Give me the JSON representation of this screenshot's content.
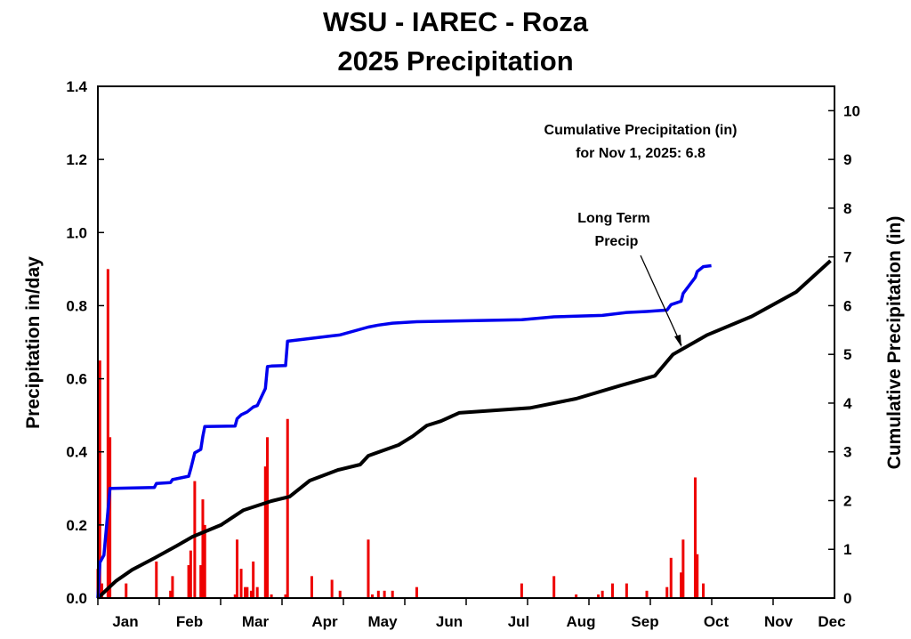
{
  "chart_data": {
    "type": "bar+line",
    "title": [
      "WSU - IAREC - Roza",
      "2025 Precipitation"
    ],
    "ylabel": "Precipitation in/day",
    "y2label": "Cumulative Precipitation (in)",
    "ylim": [
      0,
      1.4
    ],
    "y2lim": [
      0,
      10.5
    ],
    "yticks": [
      "0.0",
      "0.2",
      "0.4",
      "0.6",
      "0.8",
      "1.0",
      "1.2",
      "1.4"
    ],
    "y2ticks": [
      "0",
      "1",
      "2",
      "3",
      "4",
      "5",
      "6",
      "7",
      "8",
      "9",
      "10"
    ],
    "xlim": [
      "2025-01-01",
      "2025-12-31"
    ],
    "xticklabels": [
      "Jan",
      "Feb",
      "Mar",
      "Apr",
      "May",
      "Jun",
      "Jul",
      "Aug",
      "Sep",
      "Oct",
      "Nov",
      "Dec"
    ],
    "grid": false,
    "annotations": {
      "cumulative": [
        "Cumulative Precipitation (in)",
        "for Nov 1, 2025: 6.8"
      ],
      "long_term": [
        "Long Term",
        "Precip"
      ]
    },
    "colors": {
      "daily": "#ee0000",
      "cumulative": "#0000ee",
      "long_term": "#000000"
    },
    "daily_precip": [
      [
        "2025-01-01",
        0.08
      ],
      [
        "2025-01-02",
        0.65
      ],
      [
        "2025-01-03",
        0.04
      ],
      [
        "2025-01-06",
        0.9
      ],
      [
        "2025-01-07",
        0.44
      ],
      [
        "2025-01-15",
        0.04
      ],
      [
        "2025-01-30",
        0.1
      ],
      [
        "2025-02-06",
        0.02
      ],
      [
        "2025-02-07",
        0.06
      ],
      [
        "2025-02-15",
        0.09
      ],
      [
        "2025-02-16",
        0.13
      ],
      [
        "2025-02-18",
        0.32
      ],
      [
        "2025-02-21",
        0.09
      ],
      [
        "2025-02-22",
        0.27
      ],
      [
        "2025-02-23",
        0.2
      ],
      [
        "2025-03-10",
        0.01
      ],
      [
        "2025-03-11",
        0.16
      ],
      [
        "2025-03-13",
        0.08
      ],
      [
        "2025-03-15",
        0.03
      ],
      [
        "2025-03-16",
        0.03
      ],
      [
        "2025-03-18",
        0.02
      ],
      [
        "2025-03-19",
        0.1
      ],
      [
        "2025-03-21",
        0.03
      ],
      [
        "2025-03-25",
        0.36
      ],
      [
        "2025-03-26",
        0.44
      ],
      [
        "2025-03-28",
        0.01
      ],
      [
        "2025-04-04",
        0.01
      ],
      [
        "2025-04-05",
        0.49
      ],
      [
        "2025-04-17",
        0.06
      ],
      [
        "2025-04-27",
        0.05
      ],
      [
        "2025-05-01",
        0.02
      ],
      [
        "2025-05-15",
        0.16
      ],
      [
        "2025-05-17",
        0.01
      ],
      [
        "2025-05-20",
        0.02
      ],
      [
        "2025-05-23",
        0.02
      ],
      [
        "2025-05-27",
        0.02
      ],
      [
        "2025-06-08",
        0.03
      ],
      [
        "2025-07-30",
        0.04
      ],
      [
        "2025-08-15",
        0.06
      ],
      [
        "2025-08-26",
        0.01
      ],
      [
        "2025-09-06",
        0.01
      ],
      [
        "2025-09-08",
        0.02
      ],
      [
        "2025-09-13",
        0.04
      ],
      [
        "2025-09-20",
        0.04
      ],
      [
        "2025-09-30",
        0.02
      ],
      [
        "2025-10-10",
        0.03
      ],
      [
        "2025-10-12",
        0.11
      ],
      [
        "2025-10-17",
        0.07
      ],
      [
        "2025-10-18",
        0.16
      ],
      [
        "2025-10-24",
        0.33
      ],
      [
        "2025-10-25",
        0.12
      ],
      [
        "2025-10-28",
        0.04
      ]
    ],
    "cumulative_2025": [
      [
        "2025-01-01",
        0
      ],
      [
        "2025-01-02",
        0.73
      ],
      [
        "2025-01-04",
        0.88
      ],
      [
        "2025-01-06",
        1.78
      ],
      [
        "2025-01-07",
        2.25
      ],
      [
        "2025-01-29",
        2.27
      ],
      [
        "2025-01-30",
        2.35
      ],
      [
        "2025-02-06",
        2.37
      ],
      [
        "2025-02-07",
        2.43
      ],
      [
        "2025-02-15",
        2.5
      ],
      [
        "2025-02-16",
        2.65
      ],
      [
        "2025-02-18",
        2.98
      ],
      [
        "2025-02-21",
        3.05
      ],
      [
        "2025-02-22",
        3.32
      ],
      [
        "2025-02-23",
        3.52
      ],
      [
        "2025-03-10",
        3.53
      ],
      [
        "2025-03-11",
        3.68
      ],
      [
        "2025-03-13",
        3.76
      ],
      [
        "2025-03-16",
        3.82
      ],
      [
        "2025-03-19",
        3.92
      ],
      [
        "2025-03-21",
        3.95
      ],
      [
        "2025-03-25",
        4.3
      ],
      [
        "2025-03-26",
        4.75
      ],
      [
        "2025-03-28",
        4.76
      ],
      [
        "2025-04-04",
        4.77
      ],
      [
        "2025-04-05",
        5.27
      ],
      [
        "2025-04-17",
        5.33
      ],
      [
        "2025-04-27",
        5.38
      ],
      [
        "2025-05-01",
        5.4
      ],
      [
        "2025-05-15",
        5.56
      ],
      [
        "2025-05-20",
        5.6
      ],
      [
        "2025-05-27",
        5.64
      ],
      [
        "2025-06-08",
        5.67
      ],
      [
        "2025-07-30",
        5.71
      ],
      [
        "2025-08-15",
        5.77
      ],
      [
        "2025-09-08",
        5.8
      ],
      [
        "2025-09-20",
        5.86
      ],
      [
        "2025-09-30",
        5.88
      ],
      [
        "2025-10-10",
        5.91
      ],
      [
        "2025-10-12",
        6.02
      ],
      [
        "2025-10-17",
        6.09
      ],
      [
        "2025-10-18",
        6.25
      ],
      [
        "2025-10-24",
        6.58
      ],
      [
        "2025-10-25",
        6.7
      ],
      [
        "2025-10-28",
        6.8
      ],
      [
        "2025-11-01",
        6.82
      ]
    ],
    "long_term": [
      [
        "2025-01-01",
        0
      ],
      [
        "2025-01-10",
        0.35
      ],
      [
        "2025-01-18",
        0.58
      ],
      [
        "2025-01-29",
        0.82
      ],
      [
        "2025-02-09",
        1.07
      ],
      [
        "2025-02-17",
        1.26
      ],
      [
        "2025-03-03",
        1.5
      ],
      [
        "2025-03-14",
        1.8
      ],
      [
        "2025-03-28",
        1.99
      ],
      [
        "2025-04-06",
        2.08
      ],
      [
        "2025-04-16",
        2.41
      ],
      [
        "2025-04-30",
        2.63
      ],
      [
        "2025-05-11",
        2.74
      ],
      [
        "2025-05-15",
        2.92
      ],
      [
        "2025-05-30",
        3.14
      ],
      [
        "2025-06-06",
        3.32
      ],
      [
        "2025-06-13",
        3.54
      ],
      [
        "2025-06-20",
        3.63
      ],
      [
        "2025-06-29",
        3.8
      ],
      [
        "2025-08-03",
        3.9
      ],
      [
        "2025-08-26",
        4.09
      ],
      [
        "2025-09-17",
        4.36
      ],
      [
        "2025-10-04",
        4.56
      ],
      [
        "2025-10-13",
        5.0
      ],
      [
        "2025-10-30",
        5.4
      ],
      [
        "2025-11-21",
        5.78
      ],
      [
        "2025-12-13",
        6.28
      ],
      [
        "2025-12-30",
        6.92
      ]
    ]
  }
}
